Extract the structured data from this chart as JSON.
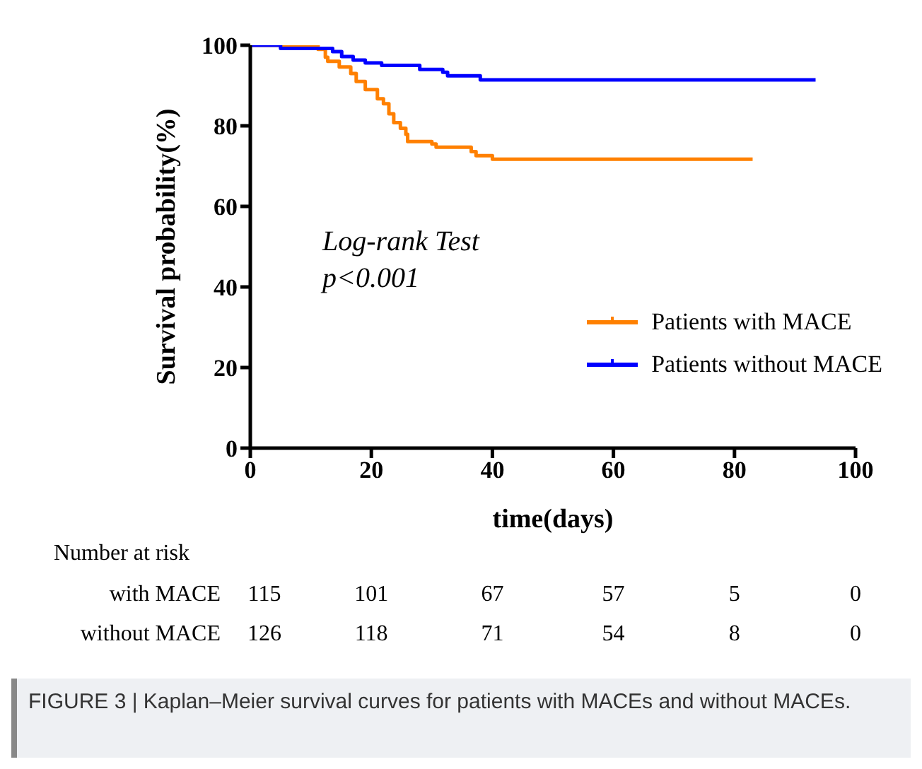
{
  "chart_data": {
    "type": "step",
    "xlabel": "time(days)",
    "ylabel": "Survival probability(%)",
    "xlim": [
      0,
      100
    ],
    "xticks": [
      0,
      20,
      40,
      60,
      80,
      100
    ],
    "ylim": [
      0,
      100
    ],
    "yticks": [
      0,
      20,
      40,
      60,
      80,
      100
    ],
    "grid": false,
    "legend": "right",
    "marker": "none",
    "line_style": "solid",
    "series": [
      {
        "name": "Patients with MACE",
        "color": "#ff8000",
        "x": [
          0,
          10,
          11.2,
          12.4,
          12.8,
          14.7,
          16.6,
          17.5,
          19,
          21,
          22,
          22.9,
          23.7,
          24.8,
          25.7,
          26,
          30,
          30.7,
          36.5,
          37.3,
          40,
          83
        ],
        "values": [
          100,
          100,
          99,
          97,
          96,
          94.6,
          93,
          91,
          89,
          86.7,
          85.5,
          83,
          80.8,
          79.4,
          77.9,
          76.1,
          75.5,
          74.7,
          73.6,
          72.6,
          71.7,
          71.7
        ]
      },
      {
        "name": "Patients without MACE",
        "color": "#0000ff",
        "x": [
          0,
          5,
          13.6,
          15.1,
          17,
          19,
          21.7,
          28,
          31.8,
          32.6,
          38,
          93.4
        ],
        "values": [
          100,
          99.2,
          98.4,
          97.2,
          96.3,
          95.6,
          95,
          94,
          93.3,
          92.4,
          91.4,
          91.4
        ]
      }
    ],
    "annotations": [
      "Log-rank Test",
      "p<0.001",
      "Number at risk",
      "with MACE",
      "115",
      "101",
      "67",
      "57",
      "5",
      "0",
      "without MACE",
      "126",
      "118",
      "71",
      "54",
      "8",
      "0",
      "FIGURE 3 | Kaplan–Meier survival curves for patients with MACEs and without MACEs."
    ]
  }
}
